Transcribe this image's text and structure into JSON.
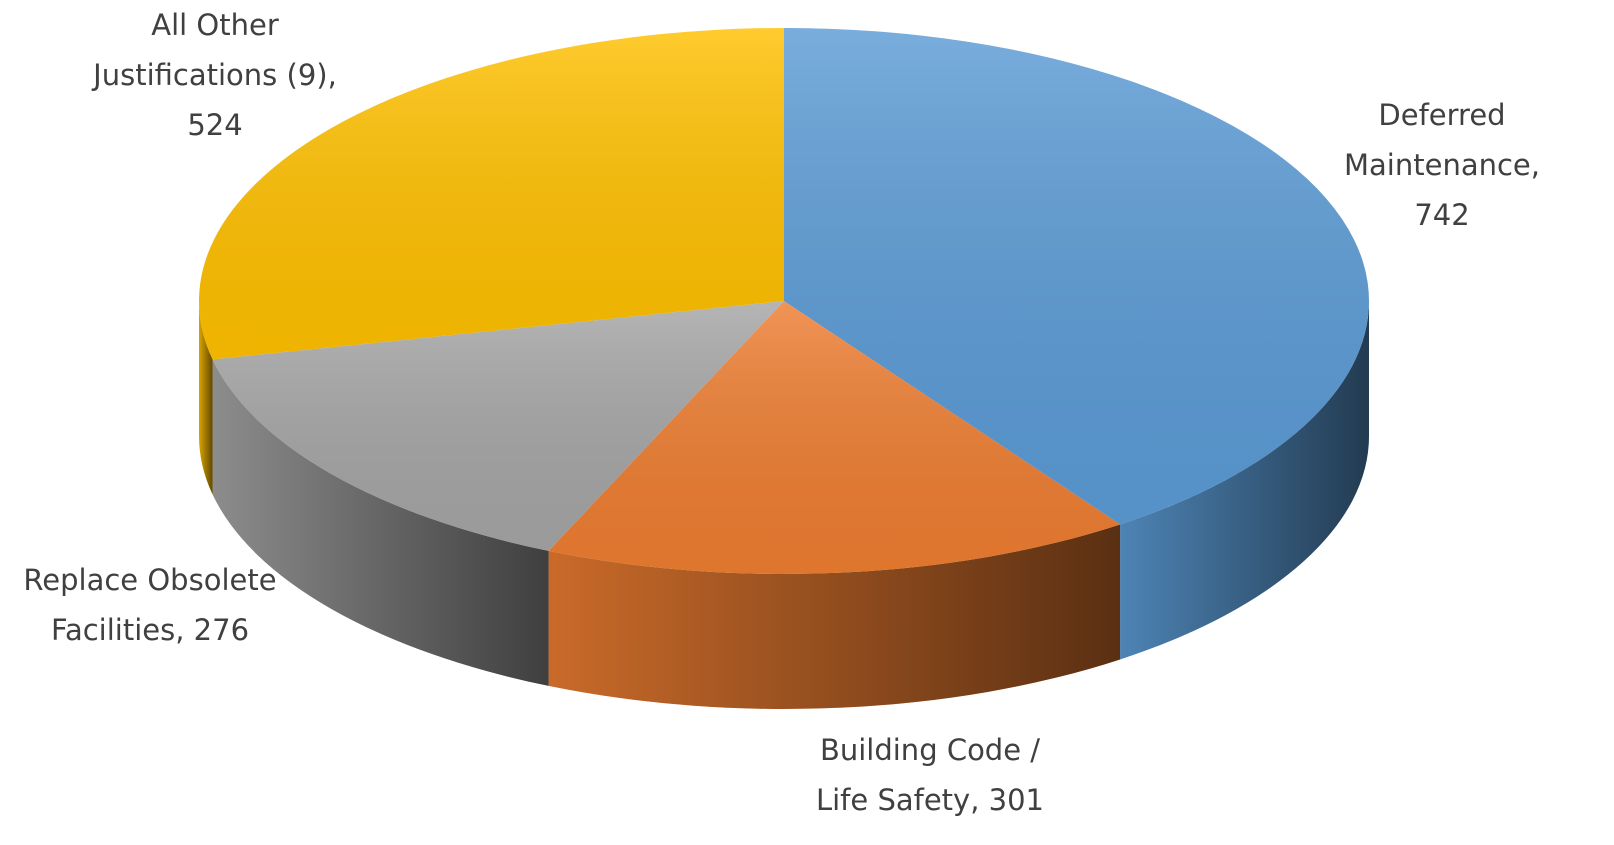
{
  "chart_data": {
    "type": "pie3d",
    "values": [
      742,
      301,
      276,
      524
    ],
    "value_labels": [
      "Deferred Maintenance, 742",
      "Building Code / Life Safety, 301",
      "Replace Obsolete Facilities, 276",
      "All Other Justifications (9), 524"
    ],
    "colors": [
      "#5b9bd5",
      "#ed7d31",
      "#a5a5a5",
      "#ffc000"
    ]
  }
}
